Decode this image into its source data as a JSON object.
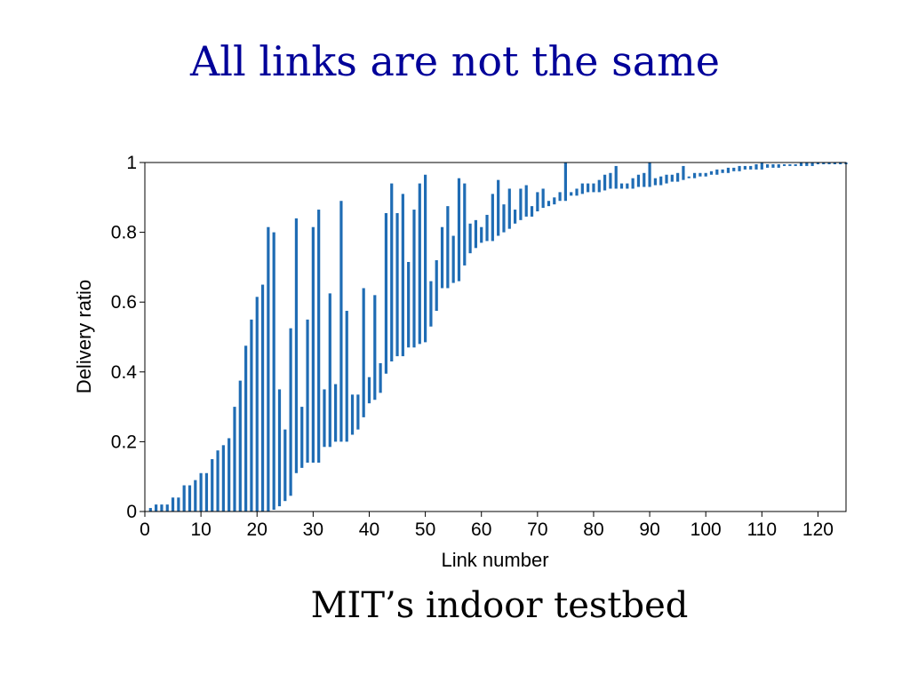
{
  "slide": {
    "title": "All links are not the same",
    "caption": "MIT’s indoor testbed"
  },
  "chart_data": {
    "type": "bar",
    "subtype": "range",
    "xlabel": "Link number",
    "ylabel": "Delivery ratio",
    "xlim": [
      0,
      125
    ],
    "ylim": [
      0,
      1
    ],
    "xticks": [
      0,
      10,
      20,
      30,
      40,
      50,
      60,
      70,
      80,
      90,
      100,
      110,
      120
    ],
    "yticks": [
      0,
      0.2,
      0.4,
      0.6,
      0.8,
      1
    ],
    "ytick_labels": [
      "0",
      "0.2",
      "0.4",
      "0.6",
      "0.8",
      "1"
    ],
    "grid": false,
    "legend": "none",
    "color": "#1f6cb4",
    "ranges": [
      [
        0,
        0.01
      ],
      [
        0,
        0.02
      ],
      [
        0,
        0.02
      ],
      [
        0,
        0.02
      ],
      [
        0,
        0.04
      ],
      [
        0,
        0.04
      ],
      [
        0,
        0.075
      ],
      [
        0,
        0.075
      ],
      [
        0,
        0.09
      ],
      [
        0,
        0.11
      ],
      [
        0,
        0.11
      ],
      [
        0,
        0.15
      ],
      [
        0,
        0.175
      ],
      [
        0,
        0.19
      ],
      [
        0,
        0.21
      ],
      [
        0,
        0.3
      ],
      [
        0,
        0.375
      ],
      [
        0,
        0.475
      ],
      [
        0,
        0.55
      ],
      [
        0,
        0.615
      ],
      [
        0,
        0.65
      ],
      [
        0,
        0.815
      ],
      [
        0.005,
        0.8
      ],
      [
        0.015,
        0.35
      ],
      [
        0.03,
        0.235
      ],
      [
        0.045,
        0.525
      ],
      [
        0.11,
        0.84
      ],
      [
        0.125,
        0.3
      ],
      [
        0.14,
        0.55
      ],
      [
        0.14,
        0.815
      ],
      [
        0.14,
        0.865
      ],
      [
        0.185,
        0.35
      ],
      [
        0.185,
        0.625
      ],
      [
        0.2,
        0.365
      ],
      [
        0.2,
        0.89
      ],
      [
        0.2,
        0.575
      ],
      [
        0.22,
        0.335
      ],
      [
        0.235,
        0.335
      ],
      [
        0.27,
        0.64
      ],
      [
        0.31,
        0.385
      ],
      [
        0.32,
        0.62
      ],
      [
        0.34,
        0.425
      ],
      [
        0.395,
        0.855
      ],
      [
        0.43,
        0.94
      ],
      [
        0.445,
        0.855
      ],
      [
        0.445,
        0.91
      ],
      [
        0.47,
        0.715
      ],
      [
        0.47,
        0.865
      ],
      [
        0.48,
        0.94
      ],
      [
        0.485,
        0.965
      ],
      [
        0.53,
        0.66
      ],
      [
        0.575,
        0.72
      ],
      [
        0.64,
        0.815
      ],
      [
        0.64,
        0.875
      ],
      [
        0.655,
        0.79
      ],
      [
        0.66,
        0.955
      ],
      [
        0.705,
        0.94
      ],
      [
        0.74,
        0.825
      ],
      [
        0.755,
        0.835
      ],
      [
        0.77,
        0.815
      ],
      [
        0.775,
        0.85
      ],
      [
        0.775,
        0.91
      ],
      [
        0.79,
        0.95
      ],
      [
        0.8,
        0.88
      ],
      [
        0.81,
        0.925
      ],
      [
        0.825,
        0.865
      ],
      [
        0.835,
        0.925
      ],
      [
        0.845,
        0.935
      ],
      [
        0.845,
        0.875
      ],
      [
        0.86,
        0.915
      ],
      [
        0.87,
        0.925
      ],
      [
        0.875,
        0.89
      ],
      [
        0.88,
        0.9
      ],
      [
        0.89,
        0.915
      ],
      [
        0.89,
        1
      ],
      [
        0.905,
        0.915
      ],
      [
        0.905,
        0.925
      ],
      [
        0.91,
        0.94
      ],
      [
        0.915,
        0.94
      ],
      [
        0.915,
        0.94
      ],
      [
        0.915,
        0.95
      ],
      [
        0.92,
        0.965
      ],
      [
        0.925,
        0.97
      ],
      [
        0.925,
        0.99
      ],
      [
        0.925,
        0.94
      ],
      [
        0.925,
        0.94
      ],
      [
        0.925,
        0.955
      ],
      [
        0.93,
        0.965
      ],
      [
        0.93,
        0.97
      ],
      [
        0.93,
        1
      ],
      [
        0.935,
        0.955
      ],
      [
        0.935,
        0.96
      ],
      [
        0.94,
        0.965
      ],
      [
        0.945,
        0.965
      ],
      [
        0.945,
        0.97
      ],
      [
        0.95,
        0.99
      ],
      [
        0.955,
        0.96
      ],
      [
        0.955,
        0.97
      ],
      [
        0.96,
        0.97
      ],
      [
        0.96,
        0.97
      ],
      [
        0.965,
        0.975
      ],
      [
        0.965,
        0.98
      ],
      [
        0.97,
        0.98
      ],
      [
        0.97,
        0.985
      ],
      [
        0.975,
        0.985
      ],
      [
        0.975,
        0.99
      ],
      [
        0.98,
        0.99
      ],
      [
        0.98,
        0.99
      ],
      [
        0.98,
        0.995
      ],
      [
        0.98,
        1
      ],
      [
        0.985,
        0.995
      ],
      [
        0.985,
        0.995
      ],
      [
        0.985,
        0.995
      ],
      [
        0.99,
        0.995
      ],
      [
        0.99,
        0.995
      ],
      [
        0.99,
        0.995
      ],
      [
        0.99,
        1
      ],
      [
        0.99,
        1
      ],
      [
        0.99,
        1
      ],
      [
        0.995,
        1
      ],
      [
        0.995,
        1
      ],
      [
        0.995,
        1
      ],
      [
        0.995,
        1
      ],
      [
        0.995,
        1
      ],
      [
        0.995,
        1
      ]
    ]
  }
}
